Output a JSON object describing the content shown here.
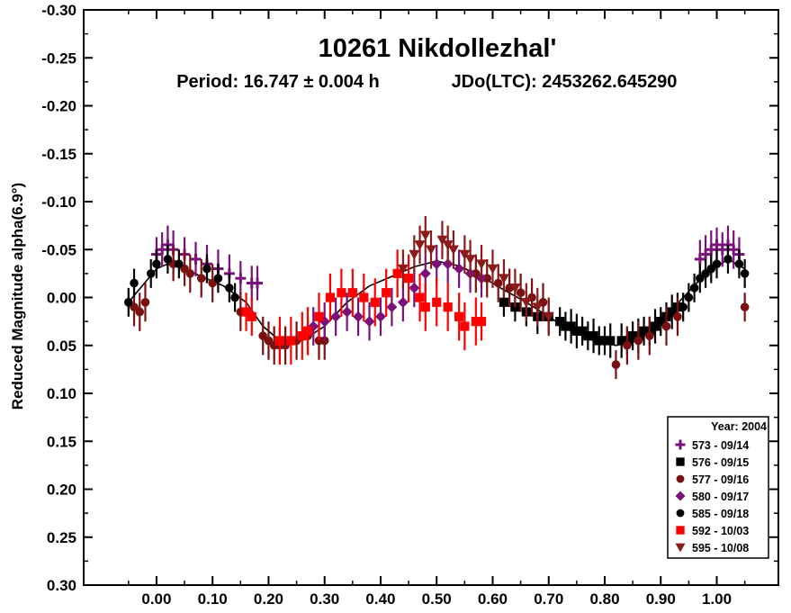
{
  "chart_data": {
    "type": "scatter",
    "title": "10261 Nikdollezhal'",
    "subtitle_period": "Period: 16.747 ± 0.004 h",
    "subtitle_epoch": "JDo(LTC): 2453262.645290",
    "ylabel": "Reduced Magnitude alpha(6.9°)",
    "xlabel": "",
    "xlim": [
      -0.13,
      1.11
    ],
    "ylim": [
      0.3,
      -0.3
    ],
    "y_inverted": true,
    "x_ticks": [
      0.0,
      0.1,
      0.2,
      0.3,
      0.4,
      0.5,
      0.6,
      0.7,
      0.8,
      0.9,
      1.0
    ],
    "x_tick_labels": [
      "0.00",
      "0.10",
      "0.20",
      "0.30",
      "0.40",
      "0.50",
      "0.60",
      "0.70",
      "0.80",
      "0.90",
      "1.00"
    ],
    "y_ticks": [
      -0.3,
      -0.25,
      -0.2,
      -0.15,
      -0.1,
      -0.05,
      0.0,
      0.05,
      0.1,
      0.15,
      0.2,
      0.25,
      0.3
    ],
    "y_tick_labels": [
      "-0.30",
      "-0.25",
      "-0.20",
      "-0.15",
      "-0.10",
      "-0.05",
      "0.00",
      "0.05",
      "0.10",
      "0.15",
      "0.20",
      "0.25",
      "0.30"
    ],
    "legend_title": "Year: 2004",
    "legend_position": "bottom-right",
    "fit_curve": {
      "color": "#000000",
      "points": [
        [
          -0.05,
          0.005
        ],
        [
          0.0,
          -0.03
        ],
        [
          0.02,
          -0.035
        ],
        [
          0.05,
          -0.03
        ],
        [
          0.08,
          -0.022
        ],
        [
          0.12,
          -0.012
        ],
        [
          0.16,
          0.005
        ],
        [
          0.19,
          0.03
        ],
        [
          0.22,
          0.045
        ],
        [
          0.26,
          0.045
        ],
        [
          0.3,
          0.03
        ],
        [
          0.34,
          0.005
        ],
        [
          0.38,
          -0.012
        ],
        [
          0.42,
          -0.022
        ],
        [
          0.46,
          -0.032
        ],
        [
          0.5,
          -0.038
        ],
        [
          0.54,
          -0.033
        ],
        [
          0.58,
          -0.022
        ],
        [
          0.62,
          -0.008
        ],
        [
          0.66,
          0.005
        ],
        [
          0.7,
          0.02
        ],
        [
          0.74,
          0.035
        ],
        [
          0.78,
          0.045
        ],
        [
          0.82,
          0.05
        ],
        [
          0.86,
          0.045
        ],
        [
          0.9,
          0.025
        ],
        [
          0.94,
          0.0
        ],
        [
          0.98,
          -0.025
        ],
        [
          1.02,
          -0.04
        ],
        [
          1.05,
          -0.03
        ]
      ]
    },
    "series": [
      {
        "name": "573 - 09/14",
        "color": "#7a117a",
        "marker": "plus",
        "x": [
          0.0,
          0.01,
          0.02,
          0.03,
          0.05,
          0.07,
          0.09,
          0.11,
          0.13,
          0.15,
          0.17,
          0.18,
          0.97,
          0.98,
          0.99,
          1.0,
          1.01,
          1.02,
          1.03,
          1.04
        ],
        "y": [
          -0.045,
          -0.05,
          -0.055,
          -0.05,
          -0.045,
          -0.04,
          -0.035,
          -0.03,
          -0.025,
          -0.02,
          -0.015,
          -0.015,
          -0.04,
          -0.045,
          -0.05,
          -0.055,
          -0.05,
          -0.055,
          -0.05,
          -0.045
        ],
        "err": [
          0.018,
          0.018,
          0.02,
          0.02,
          0.018,
          0.018,
          0.02,
          0.02,
          0.02,
          0.018,
          0.018,
          0.018,
          0.02,
          0.02,
          0.02,
          0.018,
          0.018,
          0.02,
          0.02,
          0.018
        ]
      },
      {
        "name": "576 - 09/15",
        "color": "#000000",
        "marker": "square",
        "x": [
          0.62,
          0.64,
          0.66,
          0.68,
          0.7,
          0.72,
          0.73,
          0.74,
          0.75,
          0.76,
          0.77,
          0.78,
          0.79,
          0.8,
          0.81,
          0.83,
          0.84,
          0.85,
          0.86,
          0.87,
          0.88,
          0.89,
          0.9,
          0.91,
          0.92,
          0.93
        ],
        "y": [
          0.005,
          0.01,
          0.015,
          0.02,
          0.02,
          0.025,
          0.03,
          0.03,
          0.035,
          0.035,
          0.04,
          0.04,
          0.045,
          0.045,
          0.045,
          0.045,
          0.045,
          0.04,
          0.04,
          0.035,
          0.035,
          0.03,
          0.025,
          0.02,
          0.015,
          0.01
        ],
        "err": [
          0.015,
          0.015,
          0.015,
          0.018,
          0.018,
          0.015,
          0.015,
          0.018,
          0.018,
          0.015,
          0.015,
          0.018,
          0.015,
          0.015,
          0.018,
          0.018,
          0.015,
          0.015,
          0.018,
          0.015,
          0.015,
          0.018,
          0.015,
          0.015,
          0.018,
          0.015
        ]
      },
      {
        "name": "577 - 09/16",
        "color": "#7a1010",
        "marker": "circle",
        "x": [
          -0.04,
          -0.03,
          -0.02,
          0.03,
          0.05,
          0.06,
          0.08,
          0.1,
          0.15,
          0.19,
          0.2,
          0.21,
          0.22,
          0.23,
          0.25,
          0.27,
          0.29,
          0.3,
          0.57,
          0.59,
          0.61,
          0.63,
          0.65,
          0.67,
          0.69,
          0.82,
          0.84,
          0.86,
          0.88,
          0.91,
          0.93,
          1.05
        ],
        "y": [
          0.01,
          0.015,
          0.005,
          -0.035,
          -0.03,
          -0.025,
          -0.02,
          -0.015,
          0.015,
          0.04,
          0.045,
          0.05,
          0.05,
          0.05,
          0.045,
          0.04,
          0.045,
          0.045,
          -0.025,
          -0.02,
          -0.015,
          -0.01,
          -0.005,
          0.0,
          0.005,
          0.07,
          0.05,
          0.045,
          0.04,
          0.03,
          0.02,
          0.01
        ],
        "err": [
          0.02,
          0.02,
          0.02,
          0.018,
          0.018,
          0.02,
          0.02,
          0.02,
          0.02,
          0.02,
          0.02,
          0.02,
          0.02,
          0.02,
          0.02,
          0.02,
          0.02,
          0.02,
          0.02,
          0.02,
          0.02,
          0.02,
          0.02,
          0.02,
          0.02,
          0.015,
          0.02,
          0.02,
          0.02,
          0.02,
          0.02,
          0.015
        ]
      },
      {
        "name": "580 - 09/17",
        "color": "#7a117a",
        "marker": "diamond",
        "x": [
          0.28,
          0.3,
          0.32,
          0.34,
          0.36,
          0.38,
          0.4,
          0.42,
          0.44,
          0.46,
          0.48,
          0.5,
          0.52,
          0.54,
          0.56,
          0.58
        ],
        "y": [
          0.03,
          0.025,
          0.02,
          0.015,
          0.02,
          0.025,
          0.02,
          0.01,
          0.005,
          -0.01,
          -0.025,
          -0.035,
          -0.035,
          -0.03,
          -0.025,
          -0.02
        ],
        "err": [
          0.02,
          0.02,
          0.02,
          0.02,
          0.02,
          0.02,
          0.02,
          0.02,
          0.02,
          0.02,
          0.02,
          0.02,
          0.02,
          0.02,
          0.02,
          0.02
        ]
      },
      {
        "name": "585 - 09/18",
        "color": "#000000",
        "marker": "circle",
        "x": [
          -0.05,
          -0.04,
          -0.01,
          0.0,
          0.02,
          0.04,
          0.09,
          0.11,
          0.13,
          0.14,
          0.94,
          0.95,
          0.96,
          0.97,
          0.98,
          0.99,
          1.0,
          1.02,
          1.04,
          1.05
        ],
        "y": [
          0.005,
          -0.015,
          -0.025,
          -0.035,
          -0.04,
          -0.035,
          -0.03,
          -0.02,
          -0.01,
          0.0,
          0.01,
          0.0,
          -0.01,
          -0.02,
          -0.025,
          -0.03,
          -0.035,
          -0.04,
          -0.035,
          -0.025
        ],
        "err": [
          0.015,
          0.015,
          0.015,
          0.015,
          0.015,
          0.015,
          0.015,
          0.015,
          0.015,
          0.015,
          0.015,
          0.015,
          0.015,
          0.015,
          0.015,
          0.015,
          0.015,
          0.015,
          0.015,
          0.015
        ]
      },
      {
        "name": "592 - 10/03",
        "color": "#ff0000",
        "marker": "square",
        "x": [
          0.16,
          0.17,
          0.22,
          0.24,
          0.26,
          0.27,
          0.29,
          0.31,
          0.33,
          0.35,
          0.37,
          0.39,
          0.41,
          0.43,
          0.45,
          0.47,
          0.48,
          0.5,
          0.52,
          0.54,
          0.55,
          0.57,
          0.58
        ],
        "y": [
          0.015,
          0.02,
          0.045,
          0.045,
          0.04,
          0.035,
          0.02,
          0.0,
          -0.005,
          -0.005,
          0.0,
          0.005,
          -0.005,
          -0.025,
          -0.02,
          0.0,
          0.01,
          0.005,
          0.01,
          0.02,
          0.03,
          0.025,
          0.025
        ],
        "err": [
          0.02,
          0.02,
          0.025,
          0.025,
          0.025,
          0.025,
          0.025,
          0.025,
          0.025,
          0.025,
          0.025,
          0.025,
          0.025,
          0.025,
          0.025,
          0.025,
          0.025,
          0.025,
          0.025,
          0.025,
          0.025,
          0.025,
          0.02
        ]
      },
      {
        "name": "595 - 10/08",
        "color": "#8b1a1a",
        "marker": "triangle-down",
        "x": [
          0.44,
          0.46,
          0.47,
          0.48,
          0.49,
          0.51,
          0.52,
          0.53,
          0.55,
          0.56,
          0.58,
          0.6,
          0.62,
          0.64,
          0.66,
          0.68,
          0.7
        ],
        "y": [
          -0.03,
          -0.045,
          -0.055,
          -0.065,
          -0.05,
          -0.06,
          -0.055,
          -0.05,
          -0.045,
          -0.04,
          -0.035,
          -0.03,
          -0.02,
          -0.01,
          0.005,
          0.01,
          0.02
        ],
        "err": [
          0.02,
          0.02,
          0.02,
          0.02,
          0.02,
          0.02,
          0.02,
          0.02,
          0.02,
          0.02,
          0.02,
          0.02,
          0.02,
          0.02,
          0.02,
          0.02,
          0.02
        ]
      }
    ]
  }
}
